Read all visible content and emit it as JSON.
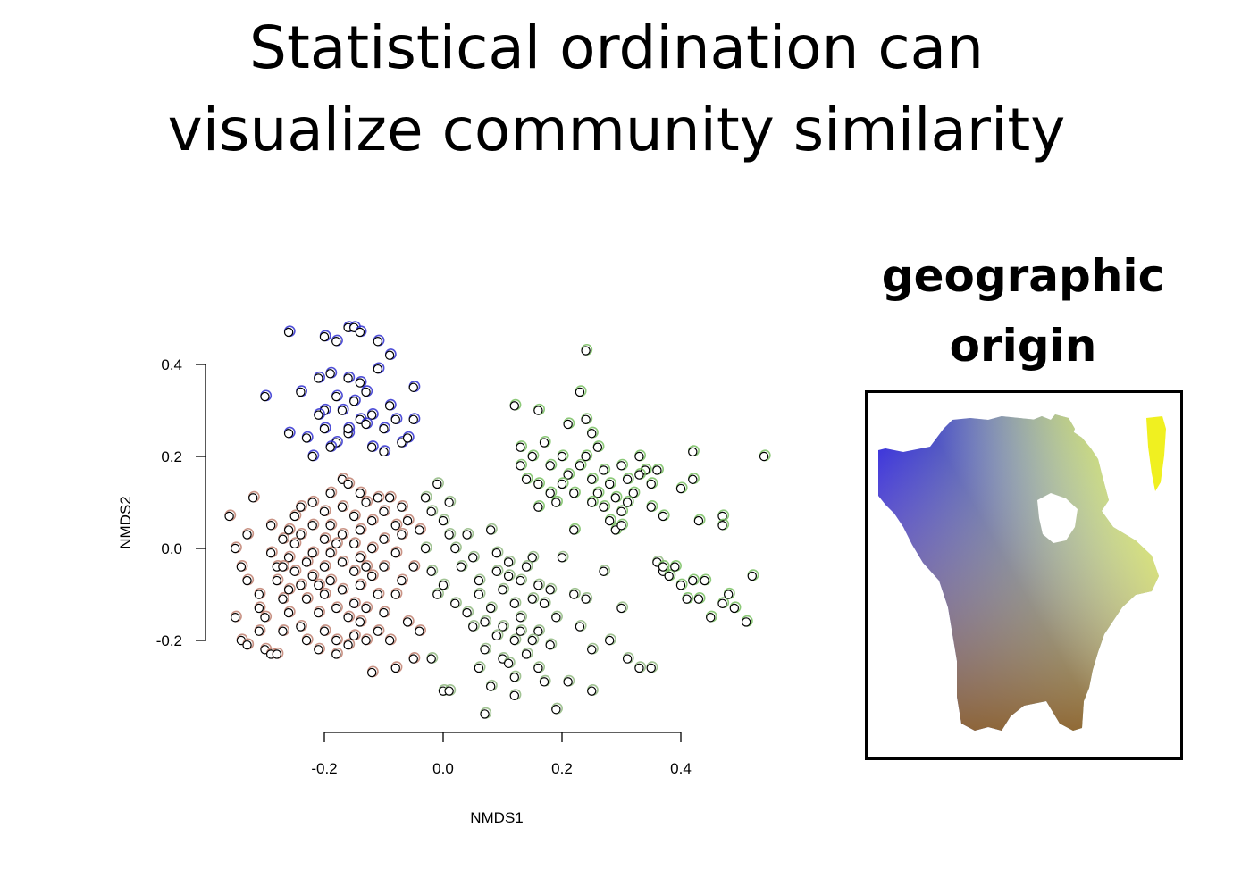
{
  "slide": {
    "title_line1": "Statistical ordination can",
    "title_line2": "visualize community similarity"
  },
  "legend": {
    "caption_line1": "geographic",
    "caption_line2": "origin",
    "map_colors": {
      "northwest": "#1a10e0",
      "northeast": "#f0f020",
      "southwest": "#b03c1c",
      "southeast": "#60b030",
      "east": "#a0e050",
      "south": "#8a5a20"
    }
  },
  "chart_data": {
    "type": "scatter",
    "title": "",
    "xlabel": "NMDS1",
    "ylabel": "NMDS2",
    "xlim": [
      -0.4,
      0.55
    ],
    "ylim": [
      -0.38,
      0.5
    ],
    "x_ticks": [
      -0.2,
      0.0,
      0.2,
      0.4
    ],
    "y_ticks": [
      -0.2,
      0.0,
      0.2,
      0.4
    ],
    "x_tick_labels": [
      "-0.2",
      "0.0",
      "0.2",
      "0.4"
    ],
    "y_tick_labels": [
      "-0.2",
      "0.0",
      "0.2",
      "0.4"
    ],
    "grid": false,
    "marker": {
      "fill": "#ffffff",
      "stroke": "#000000"
    },
    "clusters": [
      {
        "region": "northwest",
        "halo": "#3030d0",
        "points": [
          [
            -0.26,
            0.47
          ],
          [
            -0.16,
            0.48
          ],
          [
            -0.15,
            0.48
          ],
          [
            -0.14,
            0.47
          ],
          [
            -0.11,
            0.45
          ],
          [
            -0.2,
            0.46
          ],
          [
            -0.18,
            0.45
          ],
          [
            -0.09,
            0.42
          ],
          [
            -0.11,
            0.39
          ],
          [
            -0.21,
            0.37
          ],
          [
            -0.19,
            0.38
          ],
          [
            -0.16,
            0.37
          ],
          [
            -0.14,
            0.36
          ],
          [
            -0.13,
            0.34
          ],
          [
            -0.05,
            0.35
          ],
          [
            -0.24,
            0.34
          ],
          [
            -0.3,
            0.33
          ],
          [
            -0.18,
            0.33
          ],
          [
            -0.15,
            0.32
          ],
          [
            -0.09,
            0.31
          ],
          [
            -0.2,
            0.3
          ],
          [
            -0.17,
            0.3
          ],
          [
            -0.12,
            0.29
          ],
          [
            -0.14,
            0.28
          ],
          [
            -0.21,
            0.29
          ],
          [
            -0.08,
            0.28
          ],
          [
            -0.05,
            0.28
          ],
          [
            -0.2,
            0.26
          ],
          [
            -0.16,
            0.25
          ],
          [
            -0.13,
            0.27
          ],
          [
            -0.1,
            0.26
          ],
          [
            -0.18,
            0.23
          ],
          [
            -0.23,
            0.24
          ],
          [
            -0.26,
            0.25
          ],
          [
            -0.19,
            0.22
          ],
          [
            -0.12,
            0.22
          ],
          [
            -0.1,
            0.21
          ],
          [
            -0.07,
            0.23
          ],
          [
            -0.06,
            0.24
          ],
          [
            -0.22,
            0.2
          ],
          [
            -0.16,
            0.26
          ]
        ]
      },
      {
        "region": "southwest",
        "halo": "#c08070",
        "points": [
          [
            -0.36,
            0.07
          ],
          [
            -0.34,
            -0.04
          ],
          [
            -0.33,
            0.03
          ],
          [
            -0.33,
            -0.07
          ],
          [
            -0.32,
            0.11
          ],
          [
            -0.35,
            -0.15
          ],
          [
            -0.34,
            -0.2
          ],
          [
            -0.33,
            -0.21
          ],
          [
            -0.31,
            -0.13
          ],
          [
            -0.31,
            -0.18
          ],
          [
            -0.3,
            -0.15
          ],
          [
            -0.3,
            -0.22
          ],
          [
            -0.29,
            -0.23
          ],
          [
            -0.28,
            -0.23
          ],
          [
            -0.29,
            -0.01
          ],
          [
            -0.28,
            -0.04
          ],
          [
            -0.28,
            -0.07
          ],
          [
            -0.27,
            0.02
          ],
          [
            -0.27,
            -0.11
          ],
          [
            -0.27,
            -0.18
          ],
          [
            -0.26,
            0.04
          ],
          [
            -0.26,
            -0.02
          ],
          [
            -0.26,
            -0.09
          ],
          [
            -0.26,
            -0.14
          ],
          [
            -0.25,
            0.01
          ],
          [
            -0.25,
            -0.05
          ],
          [
            -0.25,
            0.07
          ],
          [
            -0.24,
            -0.08
          ],
          [
            -0.24,
            -0.17
          ],
          [
            -0.24,
            0.03
          ],
          [
            -0.23,
            -0.03
          ],
          [
            -0.23,
            -0.11
          ],
          [
            -0.23,
            -0.2
          ],
          [
            -0.22,
            0.1
          ],
          [
            -0.22,
            0.05
          ],
          [
            -0.22,
            -0.01
          ],
          [
            -0.22,
            -0.06
          ],
          [
            -0.21,
            -0.14
          ],
          [
            -0.21,
            -0.22
          ],
          [
            -0.2,
            0.08
          ],
          [
            -0.2,
            0.02
          ],
          [
            -0.2,
            -0.04
          ],
          [
            -0.2,
            -0.1
          ],
          [
            -0.2,
            -0.18
          ],
          [
            -0.19,
            0.12
          ],
          [
            -0.19,
            0.05
          ],
          [
            -0.19,
            -0.01
          ],
          [
            -0.19,
            -0.07
          ],
          [
            -0.18,
            -0.13
          ],
          [
            -0.18,
            -0.2
          ],
          [
            -0.18,
            -0.23
          ],
          [
            -0.17,
            0.15
          ],
          [
            -0.17,
            0.09
          ],
          [
            -0.17,
            0.03
          ],
          [
            -0.17,
            -0.03
          ],
          [
            -0.17,
            -0.09
          ],
          [
            -0.16,
            -0.15
          ],
          [
            -0.16,
            -0.21
          ],
          [
            -0.16,
            0.14
          ],
          [
            -0.15,
            0.07
          ],
          [
            -0.15,
            0.01
          ],
          [
            -0.15,
            -0.05
          ],
          [
            -0.15,
            -0.12
          ],
          [
            -0.15,
            -0.19
          ],
          [
            -0.14,
            0.12
          ],
          [
            -0.14,
            0.04
          ],
          [
            -0.14,
            -0.02
          ],
          [
            -0.14,
            -0.08
          ],
          [
            -0.14,
            -0.16
          ],
          [
            -0.13,
            0.1
          ],
          [
            -0.13,
            -0.13
          ],
          [
            -0.13,
            -0.2
          ],
          [
            -0.12,
            0.06
          ],
          [
            -0.12,
            0.0
          ],
          [
            -0.12,
            -0.06
          ],
          [
            -0.12,
            -0.27
          ],
          [
            -0.11,
            0.11
          ],
          [
            -0.11,
            -0.1
          ],
          [
            -0.11,
            -0.18
          ],
          [
            -0.1,
            0.08
          ],
          [
            -0.1,
            0.02
          ],
          [
            -0.1,
            -0.04
          ],
          [
            -0.1,
            -0.14
          ],
          [
            -0.09,
            0.11
          ],
          [
            -0.09,
            -0.2
          ],
          [
            -0.08,
            0.05
          ],
          [
            -0.08,
            -0.01
          ],
          [
            -0.08,
            -0.1
          ],
          [
            -0.08,
            -0.26
          ],
          [
            -0.07,
            0.09
          ],
          [
            -0.07,
            0.03
          ],
          [
            -0.07,
            -0.07
          ],
          [
            -0.06,
            -0.16
          ],
          [
            -0.06,
            0.06
          ],
          [
            -0.05,
            -0.24
          ],
          [
            -0.05,
            -0.04
          ],
          [
            -0.04,
            -0.18
          ],
          [
            -0.04,
            0.04
          ],
          [
            -0.35,
            0.0
          ],
          [
            -0.24,
            0.09
          ],
          [
            -0.18,
            0.01
          ],
          [
            -0.21,
            -0.08
          ],
          [
            -0.31,
            -0.1
          ],
          [
            -0.27,
            -0.04
          ],
          [
            -0.13,
            -0.04
          ],
          [
            -0.29,
            0.05
          ]
        ]
      },
      {
        "region": "central",
        "halo": "#90b880",
        "points": [
          [
            -0.03,
            0.11
          ],
          [
            -0.02,
            0.08
          ],
          [
            -0.01,
            0.14
          ],
          [
            0.0,
            0.06
          ],
          [
            0.01,
            0.1
          ],
          [
            0.01,
            0.03
          ],
          [
            0.02,
            0.0
          ],
          [
            -0.03,
            0.0
          ],
          [
            -0.02,
            -0.05
          ],
          [
            -0.01,
            -0.1
          ],
          [
            0.0,
            -0.08
          ],
          [
            0.02,
            -0.12
          ],
          [
            0.03,
            -0.04
          ],
          [
            0.04,
            -0.14
          ],
          [
            -0.02,
            -0.24
          ],
          [
            0.0,
            -0.31
          ],
          [
            0.01,
            -0.31
          ],
          [
            0.05,
            -0.02
          ],
          [
            0.06,
            -0.07
          ],
          [
            0.05,
            -0.17
          ],
          [
            0.07,
            -0.22
          ],
          [
            0.06,
            -0.26
          ],
          [
            0.08,
            -0.13
          ],
          [
            0.09,
            -0.05
          ],
          [
            0.08,
            -0.3
          ],
          [
            0.07,
            -0.36
          ],
          [
            0.1,
            -0.09
          ],
          [
            0.1,
            -0.17
          ],
          [
            0.1,
            -0.24
          ],
          [
            0.11,
            -0.03
          ],
          [
            0.12,
            -0.12
          ],
          [
            0.12,
            -0.2
          ],
          [
            0.12,
            -0.28
          ],
          [
            0.13,
            -0.07
          ],
          [
            0.13,
            -0.15
          ],
          [
            0.14,
            -0.23
          ],
          [
            0.15,
            -0.11
          ],
          [
            0.15,
            -0.02
          ],
          [
            0.16,
            -0.18
          ],
          [
            0.16,
            -0.26
          ],
          [
            0.17,
            -0.29
          ],
          [
            0.18,
            -0.09
          ],
          [
            0.18,
            -0.21
          ],
          [
            0.19,
            -0.15
          ],
          [
            0.19,
            -0.35
          ],
          [
            0.2,
            -0.02
          ],
          [
            0.21,
            -0.29
          ],
          [
            0.23,
            -0.17
          ],
          [
            0.24,
            -0.11
          ],
          [
            0.25,
            -0.22
          ],
          [
            0.25,
            -0.31
          ],
          [
            0.27,
            -0.05
          ],
          [
            0.28,
            -0.2
          ],
          [
            0.3,
            -0.13
          ],
          [
            0.31,
            -0.24
          ],
          [
            0.33,
            -0.26
          ],
          [
            0.35,
            -0.26
          ],
          [
            0.36,
            -0.03
          ],
          [
            0.37,
            -0.05
          ],
          [
            0.08,
            0.04
          ],
          [
            0.09,
            -0.01
          ],
          [
            0.11,
            -0.06
          ],
          [
            0.13,
            -0.18
          ],
          [
            0.14,
            -0.04
          ],
          [
            0.04,
            0.03
          ],
          [
            0.06,
            -0.1
          ],
          [
            0.15,
            -0.2
          ],
          [
            0.17,
            -0.12
          ],
          [
            0.16,
            -0.08
          ],
          [
            0.22,
            -0.1
          ],
          [
            0.09,
            -0.19
          ],
          [
            0.11,
            -0.25
          ],
          [
            0.12,
            -0.32
          ],
          [
            0.07,
            -0.16
          ]
        ]
      },
      {
        "region": "east",
        "halo": "#78c060",
        "points": [
          [
            0.12,
            0.31
          ],
          [
            0.16,
            0.3
          ],
          [
            0.24,
            0.43
          ],
          [
            0.23,
            0.34
          ],
          [
            0.21,
            0.27
          ],
          [
            0.24,
            0.28
          ],
          [
            0.25,
            0.25
          ],
          [
            0.26,
            0.22
          ],
          [
            0.13,
            0.22
          ],
          [
            0.15,
            0.2
          ],
          [
            0.17,
            0.23
          ],
          [
            0.18,
            0.18
          ],
          [
            0.13,
            0.18
          ],
          [
            0.14,
            0.15
          ],
          [
            0.16,
            0.14
          ],
          [
            0.18,
            0.12
          ],
          [
            0.2,
            0.2
          ],
          [
            0.21,
            0.16
          ],
          [
            0.22,
            0.12
          ],
          [
            0.23,
            0.18
          ],
          [
            0.25,
            0.15
          ],
          [
            0.26,
            0.12
          ],
          [
            0.27,
            0.17
          ],
          [
            0.28,
            0.14
          ],
          [
            0.29,
            0.11
          ],
          [
            0.3,
            0.18
          ],
          [
            0.31,
            0.15
          ],
          [
            0.32,
            0.12
          ],
          [
            0.33,
            0.2
          ],
          [
            0.34,
            0.17
          ],
          [
            0.35,
            0.14
          ],
          [
            0.36,
            0.17
          ],
          [
            0.27,
            0.09
          ],
          [
            0.28,
            0.06
          ],
          [
            0.29,
            0.04
          ],
          [
            0.3,
            0.08
          ],
          [
            0.31,
            0.1
          ],
          [
            0.22,
            0.04
          ],
          [
            0.16,
            0.09
          ],
          [
            0.19,
            0.1
          ],
          [
            0.37,
            0.07
          ],
          [
            0.4,
            0.13
          ],
          [
            0.42,
            0.15
          ],
          [
            0.42,
            0.21
          ],
          [
            0.43,
            0.06
          ],
          [
            0.47,
            0.07
          ],
          [
            0.47,
            0.05
          ],
          [
            0.54,
            0.2
          ],
          [
            0.37,
            -0.04
          ],
          [
            0.38,
            -0.06
          ],
          [
            0.39,
            -0.04
          ],
          [
            0.4,
            -0.08
          ],
          [
            0.41,
            -0.11
          ],
          [
            0.42,
            -0.07
          ],
          [
            0.43,
            -0.11
          ],
          [
            0.44,
            -0.07
          ],
          [
            0.45,
            -0.15
          ],
          [
            0.47,
            -0.12
          ],
          [
            0.48,
            -0.1
          ],
          [
            0.49,
            -0.13
          ],
          [
            0.52,
            -0.06
          ],
          [
            0.51,
            -0.16
          ],
          [
            0.24,
            0.2
          ],
          [
            0.33,
            0.16
          ],
          [
            0.3,
            0.05
          ],
          [
            0.25,
            0.1
          ],
          [
            0.2,
            0.14
          ],
          [
            0.35,
            0.09
          ]
        ]
      }
    ]
  }
}
